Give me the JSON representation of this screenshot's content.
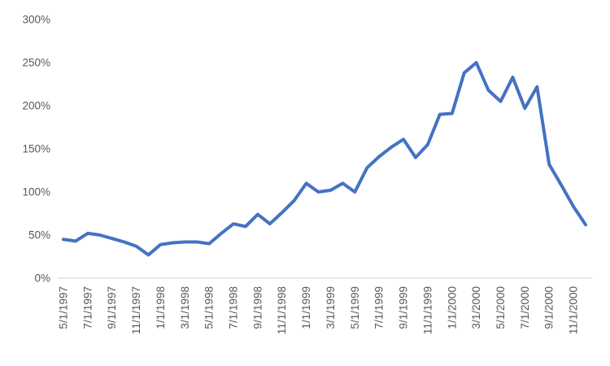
{
  "chart_data": {
    "type": "line",
    "title": "",
    "xlabel": "",
    "ylabel": "",
    "series_name": "",
    "x": [
      "5/1/1997",
      "6/1/1997",
      "7/1/1997",
      "8/1/1997",
      "9/1/1997",
      "10/1/1997",
      "11/1/1997",
      "12/1/1997",
      "1/1/1998",
      "2/1/1998",
      "3/1/1998",
      "4/1/1998",
      "5/1/1998",
      "6/1/1998",
      "7/1/1998",
      "8/1/1998",
      "9/1/1998",
      "10/1/1998",
      "11/1/1998",
      "12/1/1998",
      "1/1/1999",
      "2/1/1999",
      "3/1/1999",
      "4/1/1999",
      "5/1/1999",
      "6/1/1999",
      "7/1/1999",
      "8/1/1999",
      "9/1/1999",
      "10/1/1999",
      "11/1/1999",
      "12/1/1999",
      "1/1/2000",
      "2/1/2000",
      "3/1/2000",
      "4/1/2000",
      "5/1/2000",
      "6/1/2000",
      "7/1/2000",
      "8/1/2000",
      "9/1/2000",
      "10/1/2000",
      "11/1/2000",
      "12/1/2000"
    ],
    "values": [
      45,
      43,
      52,
      50,
      46,
      42,
      37,
      27,
      39,
      41,
      42,
      42,
      40,
      52,
      63,
      60,
      74,
      63,
      76,
      90,
      110,
      100,
      102,
      110,
      100,
      128,
      141,
      152,
      161,
      140,
      155,
      190,
      191,
      238,
      250,
      218,
      205,
      233,
      197,
      222,
      132,
      108,
      83,
      62
    ],
    "x_tick_every": 2,
    "x_tick_labels": [
      "5/1/1997",
      "7/1/1997",
      "9/1/1997",
      "11/1/1997",
      "1/1/1998",
      "3/1/1998",
      "5/1/1998",
      "7/1/1998",
      "9/1/1998",
      "11/1/1998",
      "1/1/1999",
      "3/1/1999",
      "5/1/1999",
      "7/1/1999",
      "9/1/1999",
      "11/1/1999",
      "1/1/2000",
      "3/1/2000",
      "5/1/2000",
      "7/1/2000",
      "9/1/2000",
      "11/1/2000"
    ],
    "y_ticks": [
      {
        "value": 0,
        "label": "0%"
      },
      {
        "value": 50,
        "label": "50%"
      },
      {
        "value": 100,
        "label": "100%"
      },
      {
        "value": 150,
        "label": "150%"
      },
      {
        "value": 200,
        "label": "200%"
      },
      {
        "value": 250,
        "label": "250%"
      },
      {
        "value": 300,
        "label": "300%"
      }
    ],
    "ylim": [
      0,
      300
    ],
    "grid": false,
    "legend": "none",
    "colors": {
      "line": "#4472C4",
      "axis_line": "#D9D9D9",
      "tick_text": "#595959",
      "background": "#FFFFFF"
    },
    "line_width": 4
  }
}
